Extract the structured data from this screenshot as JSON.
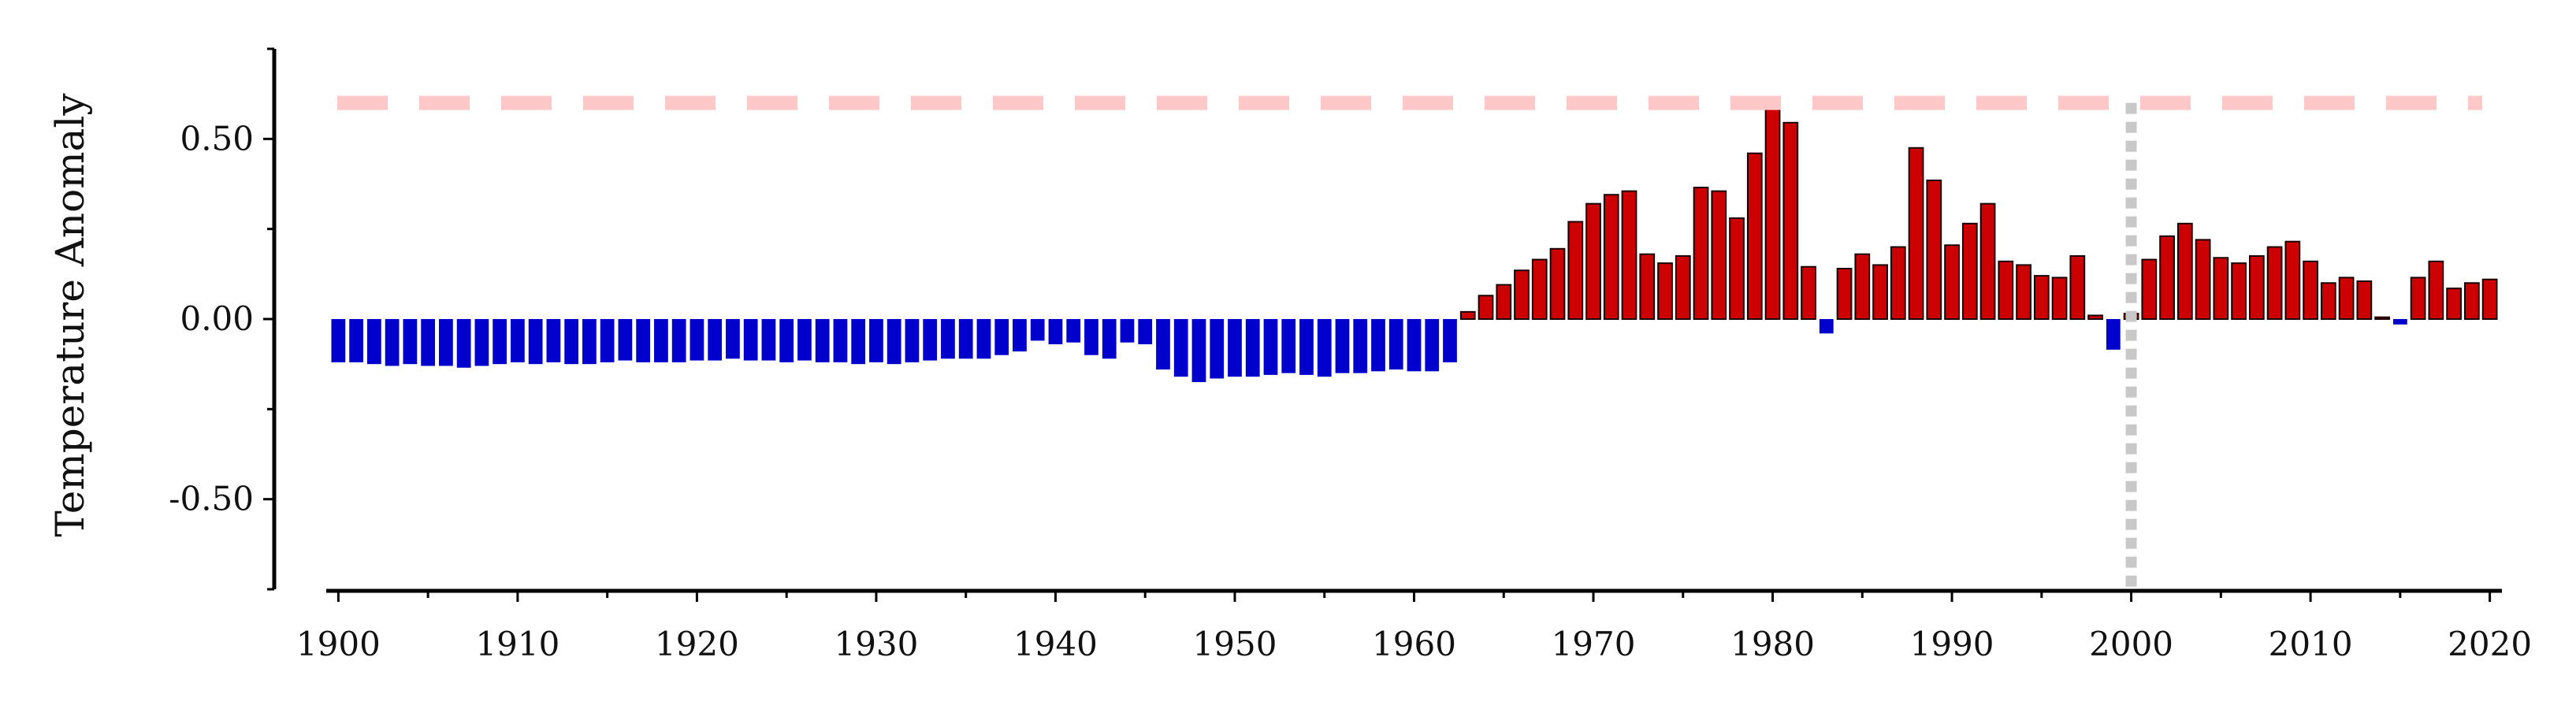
{
  "chart_data": {
    "type": "bar",
    "title": "",
    "xlabel": "",
    "ylabel": "Temperature Anomaly",
    "xlim": [
      1899.5,
      2020.5
    ],
    "ylim": [
      -0.75,
      0.75
    ],
    "xticks": [
      1900,
      1910,
      1920,
      1930,
      1940,
      1950,
      1960,
      1970,
      1980,
      1990,
      2000,
      2010,
      2020
    ],
    "xtick_labels": [
      "1900",
      "1910",
      "1920",
      "1930",
      "1940",
      "1950",
      "1960",
      "1970",
      "1980",
      "1990",
      "2000",
      "2010",
      "2020"
    ],
    "yticks": [
      -0.5,
      0.0,
      0.5
    ],
    "ytick_labels": [
      "-0.50",
      "0.00",
      "0.50"
    ],
    "grid": false,
    "legend": null,
    "colors": {
      "positive": "#cc0000",
      "negative": "#0000cc",
      "reference_line": "#ffc8c8",
      "marker_line": "#c8c8c8",
      "axis": "#000000"
    },
    "reference_hline": {
      "y": 0.6,
      "style": "dashed"
    },
    "marker_vline": {
      "x": 2000,
      "style": "dotted"
    },
    "x": [
      1900,
      1901,
      1902,
      1903,
      1904,
      1905,
      1906,
      1907,
      1908,
      1909,
      1910,
      1911,
      1912,
      1913,
      1914,
      1915,
      1916,
      1917,
      1918,
      1919,
      1920,
      1921,
      1922,
      1923,
      1924,
      1925,
      1926,
      1927,
      1928,
      1929,
      1930,
      1931,
      1932,
      1933,
      1934,
      1935,
      1936,
      1937,
      1938,
      1939,
      1940,
      1941,
      1942,
      1943,
      1944,
      1945,
      1946,
      1947,
      1948,
      1949,
      1950,
      1951,
      1952,
      1953,
      1954,
      1955,
      1956,
      1957,
      1958,
      1959,
      1960,
      1961,
      1962,
      1963,
      1964,
      1965,
      1966,
      1967,
      1968,
      1969,
      1970,
      1971,
      1972,
      1973,
      1974,
      1975,
      1976,
      1977,
      1978,
      1979,
      1980,
      1981,
      1982,
      1983,
      1984,
      1985,
      1986,
      1987,
      1988,
      1989,
      1990,
      1991,
      1992,
      1993,
      1994,
      1995,
      1996,
      1997,
      1998,
      1999,
      2000,
      2001,
      2002,
      2003,
      2004,
      2005,
      2006,
      2007,
      2008,
      2009,
      2010,
      2011,
      2012,
      2013,
      2014,
      2015,
      2016,
      2017,
      2018,
      2019,
      2020
    ],
    "values": [
      -0.12,
      -0.12,
      -0.125,
      -0.13,
      -0.125,
      -0.13,
      -0.13,
      -0.135,
      -0.13,
      -0.125,
      -0.12,
      -0.125,
      -0.12,
      -0.125,
      -0.125,
      -0.12,
      -0.115,
      -0.12,
      -0.12,
      -0.12,
      -0.115,
      -0.115,
      -0.11,
      -0.115,
      -0.115,
      -0.12,
      -0.115,
      -0.12,
      -0.12,
      -0.125,
      -0.12,
      -0.125,
      -0.12,
      -0.115,
      -0.11,
      -0.11,
      -0.11,
      -0.1,
      -0.09,
      -0.06,
      -0.07,
      -0.065,
      -0.1,
      -0.11,
      -0.065,
      -0.07,
      -0.14,
      -0.16,
      -0.175,
      -0.165,
      -0.16,
      -0.16,
      -0.155,
      -0.15,
      -0.155,
      -0.16,
      -0.15,
      -0.15,
      -0.145,
      -0.14,
      -0.145,
      -0.145,
      -0.12,
      0.02,
      0.065,
      0.095,
      0.135,
      0.165,
      0.195,
      0.27,
      0.32,
      0.345,
      0.355,
      0.18,
      0.155,
      0.175,
      0.365,
      0.355,
      0.28,
      0.46,
      0.6,
      0.545,
      0.145,
      -0.04,
      0.14,
      0.18,
      0.15,
      0.2,
      0.475,
      0.385,
      0.205,
      0.265,
      0.32,
      0.16,
      0.15,
      0.12,
      0.115,
      0.175,
      0.01,
      -0.085,
      0.015,
      0.165,
      0.23,
      0.265,
      0.22,
      0.17,
      0.155,
      0.175,
      0.2,
      0.215,
      0.16,
      0.1,
      0.115,
      0.105,
      0.005,
      -0.015,
      0.115,
      0.16,
      0.085,
      0.1,
      0.11
    ]
  }
}
